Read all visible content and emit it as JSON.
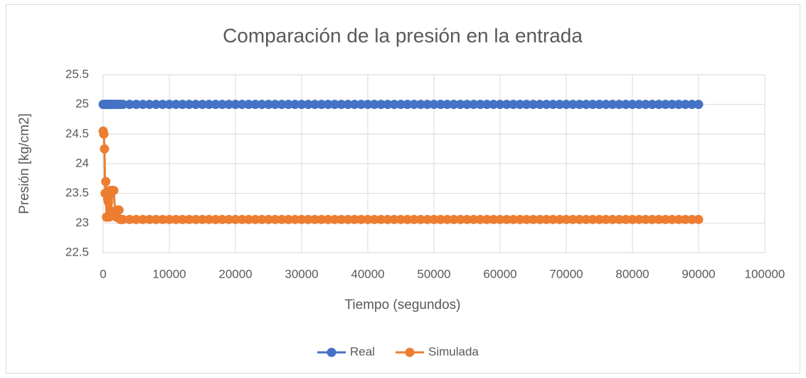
{
  "chart_data": {
    "type": "line",
    "title": "Comparación de la presión en la entrada",
    "x_label": "Tiempo (segundos)",
    "y_label": "Presión [kg/cm2]",
    "x": [
      0,
      100,
      200,
      300,
      400,
      500,
      600,
      700,
      800,
      900,
      1000,
      1200,
      1400,
      1600,
      1800,
      2000,
      2200,
      2400,
      2600,
      2800,
      3000,
      4000,
      5000,
      6000,
      7000,
      8000,
      9000,
      10000,
      11000,
      12000,
      13000,
      14000,
      15000,
      16000,
      17000,
      18000,
      19000,
      20000,
      21000,
      22000,
      23000,
      24000,
      25000,
      26000,
      27000,
      28000,
      29000,
      30000,
      31000,
      32000,
      33000,
      34000,
      35000,
      36000,
      37000,
      38000,
      39000,
      40000,
      41000,
      42000,
      43000,
      44000,
      45000,
      46000,
      47000,
      48000,
      49000,
      50000,
      51000,
      52000,
      53000,
      54000,
      55000,
      56000,
      57000,
      58000,
      59000,
      60000,
      61000,
      62000,
      63000,
      64000,
      65000,
      66000,
      67000,
      68000,
      69000,
      70000,
      71000,
      72000,
      73000,
      74000,
      75000,
      76000,
      77000,
      78000,
      79000,
      80000,
      81000,
      82000,
      83000,
      84000,
      85000,
      86000,
      87000,
      88000,
      89000,
      90000
    ],
    "series": [
      {
        "name": "Real",
        "color": "#4472c4",
        "values": [
          25,
          25,
          25,
          25,
          25,
          25,
          25,
          25,
          25,
          25,
          25,
          25,
          25,
          25,
          25,
          25,
          25,
          25,
          25,
          25,
          25,
          25,
          25,
          25,
          25,
          25,
          25,
          25,
          25,
          25,
          25,
          25,
          25,
          25,
          25,
          25,
          25,
          25,
          25,
          25,
          25,
          25,
          25,
          25,
          25,
          25,
          25,
          25,
          25,
          25,
          25,
          25,
          25,
          25,
          25,
          25,
          25,
          25,
          25,
          25,
          25,
          25,
          25,
          25,
          25,
          25,
          25,
          25,
          25,
          25,
          25,
          25,
          25,
          25,
          25,
          25,
          25,
          25,
          25,
          25,
          25,
          25,
          25,
          25,
          25,
          25,
          25,
          25,
          25,
          25,
          25,
          25,
          25,
          25,
          25,
          25,
          25,
          25,
          25,
          25,
          25,
          25,
          25,
          25,
          25,
          25,
          25,
          25
        ]
      },
      {
        "name": "Simulada",
        "color": "#ed7d31",
        "values": [
          24.55,
          24.5,
          24.25,
          23.5,
          23.7,
          23.1,
          23.5,
          23.4,
          23.35,
          23.1,
          23.55,
          23.2,
          23.55,
          23.55,
          23.2,
          23.1,
          23.22,
          23.22,
          23.06,
          23.06,
          23.06,
          23.06,
          23.06,
          23.06,
          23.06,
          23.06,
          23.06,
          23.06,
          23.06,
          23.06,
          23.06,
          23.06,
          23.06,
          23.06,
          23.06,
          23.06,
          23.06,
          23.06,
          23.06,
          23.06,
          23.06,
          23.06,
          23.06,
          23.06,
          23.06,
          23.06,
          23.06,
          23.06,
          23.06,
          23.06,
          23.06,
          23.06,
          23.06,
          23.06,
          23.06,
          23.06,
          23.06,
          23.06,
          23.06,
          23.06,
          23.06,
          23.06,
          23.06,
          23.06,
          23.06,
          23.06,
          23.06,
          23.06,
          23.06,
          23.06,
          23.06,
          23.06,
          23.06,
          23.06,
          23.06,
          23.06,
          23.06,
          23.06,
          23.06,
          23.06,
          23.06,
          23.06,
          23.06,
          23.06,
          23.06,
          23.06,
          23.06,
          23.06,
          23.06,
          23.06,
          23.06,
          23.06,
          23.06,
          23.06,
          23.06,
          23.06,
          23.06,
          23.06,
          23.06,
          23.06,
          23.06,
          23.06,
          23.06,
          23.06,
          23.06,
          23.06,
          23.06,
          23.06
        ]
      }
    ],
    "xlim": [
      0,
      100000
    ],
    "xticks": [
      0,
      10000,
      20000,
      30000,
      40000,
      50000,
      60000,
      70000,
      80000,
      90000,
      100000
    ],
    "ylim": [
      22.5,
      25.5
    ],
    "yticks": [
      22.5,
      23,
      23.5,
      24,
      24.5,
      25,
      25.5
    ],
    "grid": true,
    "legend": "bottom"
  }
}
